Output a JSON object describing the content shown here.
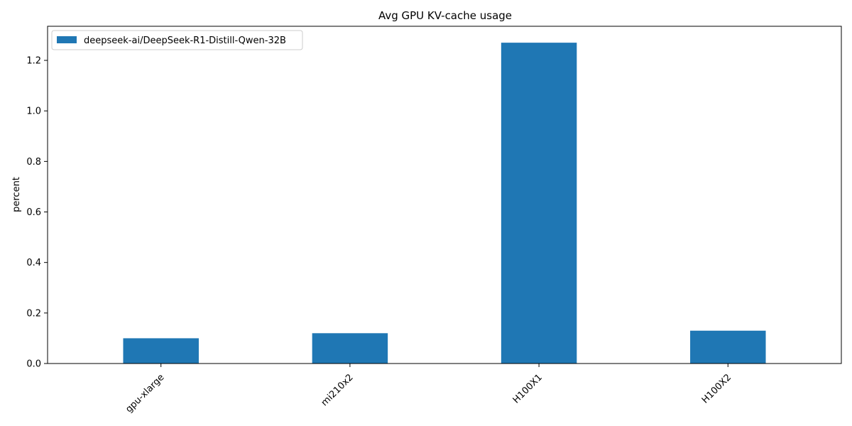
{
  "chart_data": {
    "type": "bar",
    "title": "Avg GPU KV-cache usage",
    "xlabel": "",
    "ylabel": "percent",
    "categories": [
      "gpu-xlarge",
      "mi210x2",
      "H100X1",
      "H100X2"
    ],
    "series": [
      {
        "name": "deepseek-ai/DeepSeek-R1-Distill-Qwen-32B",
        "color": "#1f77b4",
        "values": [
          0.1,
          0.12,
          1.27,
          0.13
        ]
      }
    ],
    "ylim": [
      0,
      1.335
    ],
    "yticks": [
      "0.0",
      "0.2",
      "0.4",
      "0.6",
      "0.8",
      "1.0",
      "1.2"
    ],
    "grid": false,
    "legend": "top-left"
  }
}
